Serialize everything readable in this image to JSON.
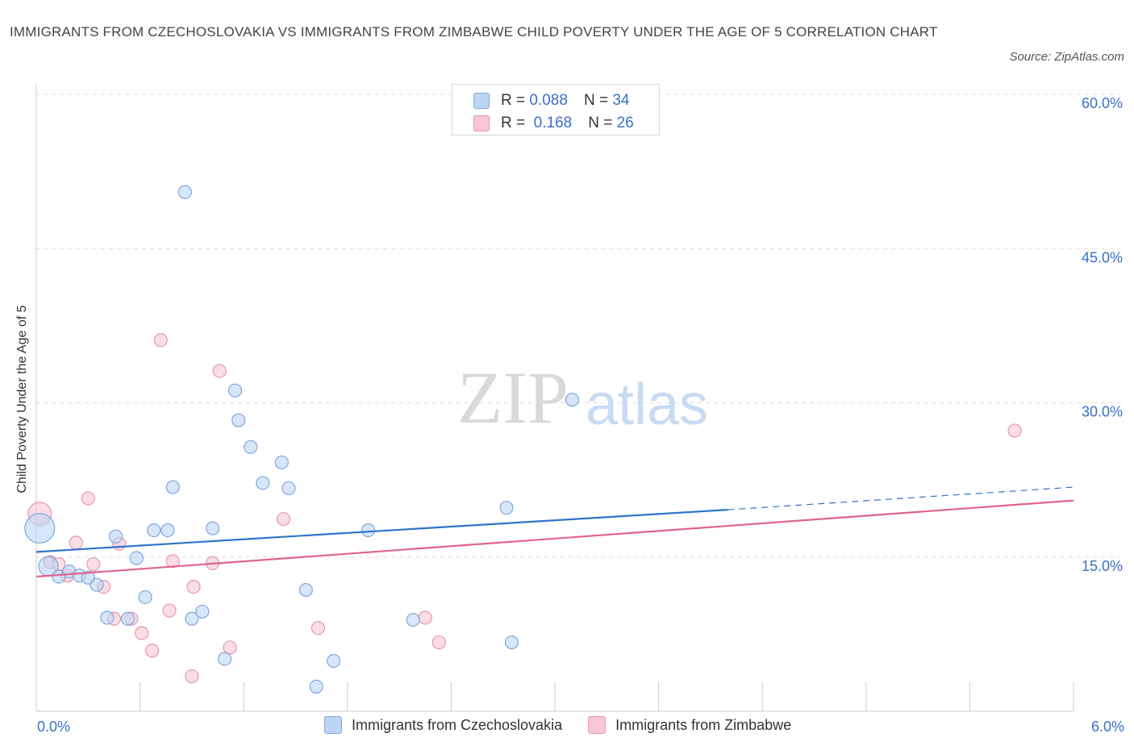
{
  "title": "IMMIGRANTS FROM CZECHOSLOVAKIA VS IMMIGRANTS FROM ZIMBABWE CHILD POVERTY UNDER THE AGE OF 5 CORRELATION CHART",
  "source": "Source: ZipAtlas.com",
  "watermark": {
    "zip": "ZIP",
    "atlas": "atlas"
  },
  "legend_top": {
    "rows": [
      {
        "r_label": "R =",
        "r_value": "0.088",
        "n_label": "N =",
        "n_value": "34"
      },
      {
        "r_label": "R =",
        "r_value": "0.168",
        "n_label": "N =",
        "n_value": "26"
      }
    ]
  },
  "colors": {
    "czech_fill": "#bcd5f5",
    "czech_stroke": "#7fa8dd",
    "czech_line": "#2f74c8",
    "zim_fill": "#f8c6d6",
    "zim_stroke": "#e995b0",
    "zim_line": "#e0648f",
    "tick_label": "#3a6fc4",
    "grid": "#dddddd"
  },
  "chart_data": {
    "type": "scatter",
    "title": "IMMIGRANTS FROM CZECHOSLOVAKIA VS IMMIGRANTS FROM ZIMBABWE CHILD POVERTY UNDER THE AGE OF 5 CORRELATION CHART",
    "xlabel": "",
    "ylabel": "Child Poverty Under the Age of 5",
    "xlim": [
      0,
      6
    ],
    "ylim": [
      0,
      60
    ],
    "x_tick_labels": [
      "0.0%",
      "6.0%"
    ],
    "y_ticks": [
      15,
      30,
      45,
      60
    ],
    "y_tick_labels": [
      "15.0%",
      "30.0%",
      "45.0%",
      "60.0%"
    ],
    "grid": true,
    "legend_position": "top-center",
    "series": [
      {
        "name": "Immigrants from Czechoslovakia",
        "R": 0.088,
        "N": 34,
        "trend": {
          "x0": 0.0,
          "y0": 15.5,
          "x1": 4.0,
          "y1": 19.6,
          "dashed_to_x": 6.0,
          "dashed_to_y": 21.8
        },
        "points": [
          {
            "x": 0.02,
            "y": 17.8,
            "s": 2.3
          },
          {
            "x": 0.07,
            "y": 14.1,
            "s": 1.5
          },
          {
            "x": 0.13,
            "y": 13.1,
            "s": 1
          },
          {
            "x": 0.19,
            "y": 13.6,
            "s": 1
          },
          {
            "x": 0.25,
            "y": 13.2,
            "s": 1
          },
          {
            "x": 0.3,
            "y": 13.0,
            "s": 1
          },
          {
            "x": 0.35,
            "y": 12.3,
            "s": 1
          },
          {
            "x": 0.41,
            "y": 9.1,
            "s": 1
          },
          {
            "x": 0.46,
            "y": 17.0,
            "s": 1
          },
          {
            "x": 0.53,
            "y": 9.0,
            "s": 1
          },
          {
            "x": 0.58,
            "y": 14.9,
            "s": 1
          },
          {
            "x": 0.63,
            "y": 11.1,
            "s": 1
          },
          {
            "x": 0.68,
            "y": 17.6,
            "s": 1
          },
          {
            "x": 0.76,
            "y": 17.6,
            "s": 1
          },
          {
            "x": 0.79,
            "y": 21.8,
            "s": 1
          },
          {
            "x": 0.86,
            "y": 50.5,
            "s": 1
          },
          {
            "x": 0.9,
            "y": 9.0,
            "s": 1
          },
          {
            "x": 0.96,
            "y": 9.7,
            "s": 1
          },
          {
            "x": 1.02,
            "y": 17.8,
            "s": 1
          },
          {
            "x": 1.09,
            "y": 5.1,
            "s": 1
          },
          {
            "x": 1.15,
            "y": 31.2,
            "s": 1
          },
          {
            "x": 1.17,
            "y": 28.3,
            "s": 1
          },
          {
            "x": 1.24,
            "y": 25.7,
            "s": 1
          },
          {
            "x": 1.31,
            "y": 22.2,
            "s": 1
          },
          {
            "x": 1.42,
            "y": 24.2,
            "s": 1
          },
          {
            "x": 1.46,
            "y": 21.7,
            "s": 1
          },
          {
            "x": 1.56,
            "y": 11.8,
            "s": 1
          },
          {
            "x": 1.62,
            "y": 2.4,
            "s": 1
          },
          {
            "x": 1.72,
            "y": 4.9,
            "s": 1
          },
          {
            "x": 1.92,
            "y": 17.6,
            "s": 1
          },
          {
            "x": 2.18,
            "y": 8.9,
            "s": 1
          },
          {
            "x": 2.72,
            "y": 19.8,
            "s": 1
          },
          {
            "x": 2.75,
            "y": 6.7,
            "s": 1
          },
          {
            "x": 3.1,
            "y": 30.3,
            "s": 1
          }
        ]
      },
      {
        "name": "Immigrants from Zimbabwe",
        "R": 0.168,
        "N": 26,
        "trend": {
          "x0": 0.0,
          "y0": 13.1,
          "x1": 6.0,
          "y1": 20.5
        },
        "points": [
          {
            "x": 0.02,
            "y": 19.2,
            "s": 1.8
          },
          {
            "x": 0.08,
            "y": 14.5,
            "s": 1
          },
          {
            "x": 0.13,
            "y": 14.3,
            "s": 1
          },
          {
            "x": 0.18,
            "y": 13.2,
            "s": 1
          },
          {
            "x": 0.23,
            "y": 16.4,
            "s": 1
          },
          {
            "x": 0.3,
            "y": 20.7,
            "s": 1
          },
          {
            "x": 0.33,
            "y": 14.3,
            "s": 1
          },
          {
            "x": 0.39,
            "y": 12.1,
            "s": 1
          },
          {
            "x": 0.45,
            "y": 9.0,
            "s": 1
          },
          {
            "x": 0.48,
            "y": 16.3,
            "s": 1
          },
          {
            "x": 0.55,
            "y": 9.0,
            "s": 1
          },
          {
            "x": 0.61,
            "y": 7.6,
            "s": 1
          },
          {
            "x": 0.67,
            "y": 5.9,
            "s": 1
          },
          {
            "x": 0.72,
            "y": 36.1,
            "s": 1
          },
          {
            "x": 0.77,
            "y": 9.8,
            "s": 1
          },
          {
            "x": 0.79,
            "y": 14.6,
            "s": 1
          },
          {
            "x": 0.9,
            "y": 3.4,
            "s": 1
          },
          {
            "x": 0.91,
            "y": 12.1,
            "s": 1
          },
          {
            "x": 1.02,
            "y": 14.4,
            "s": 1
          },
          {
            "x": 1.06,
            "y": 33.1,
            "s": 1
          },
          {
            "x": 1.12,
            "y": 6.2,
            "s": 1
          },
          {
            "x": 1.43,
            "y": 18.7,
            "s": 1
          },
          {
            "x": 1.63,
            "y": 8.1,
            "s": 1
          },
          {
            "x": 2.25,
            "y": 9.1,
            "s": 1
          },
          {
            "x": 2.33,
            "y": 6.7,
            "s": 1
          },
          {
            "x": 5.66,
            "y": 27.3,
            "s": 1
          }
        ]
      }
    ]
  }
}
